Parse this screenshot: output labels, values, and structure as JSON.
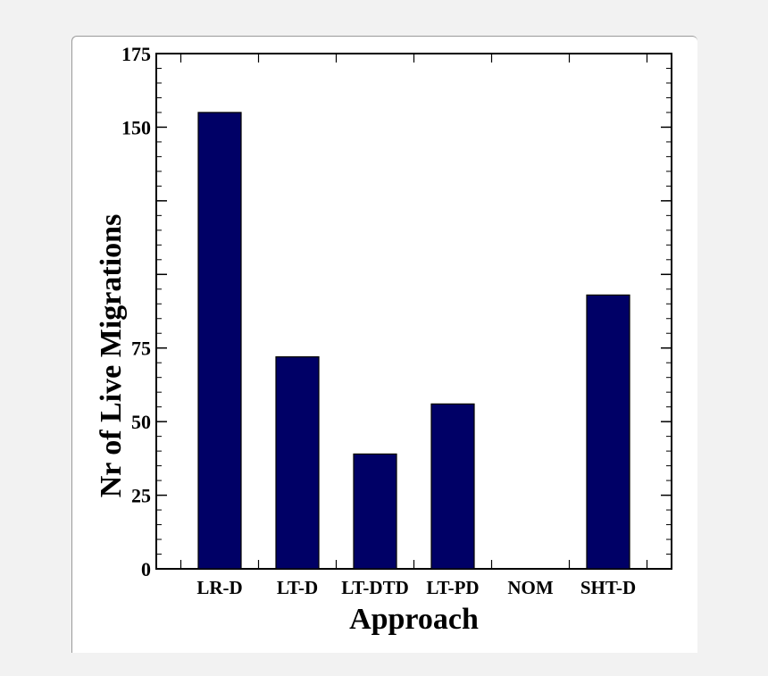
{
  "chart_data": {
    "type": "bar",
    "categories": [
      "LR-D",
      "LT-D",
      "LT-DTD",
      "LT-PD",
      "NOM",
      "SHT-D"
    ],
    "values": [
      155,
      72,
      39,
      56,
      0,
      93
    ],
    "title": "",
    "xlabel": "Approach",
    "ylabel": "Nr of Live Migrations",
    "ylim": [
      0,
      175
    ],
    "yticks": [
      0,
      25,
      50,
      75,
      150,
      175
    ],
    "bar_color": "#000066",
    "grid": false,
    "legend": "none"
  }
}
